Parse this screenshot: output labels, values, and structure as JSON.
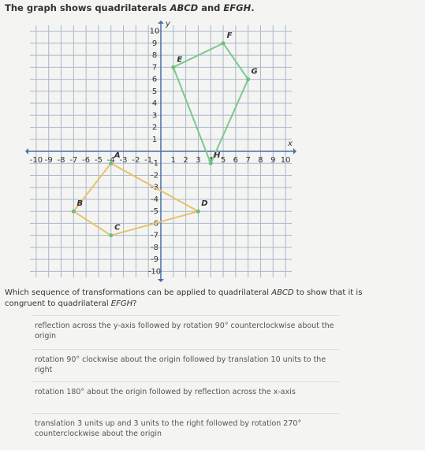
{
  "header": {
    "title": [
      "The graph shows quadrilaterals ",
      "ABCD",
      " and ",
      "EFGH",
      "."
    ]
  },
  "graph": {
    "x_label": "x",
    "y_label": "y",
    "xlim": [
      -10.5,
      10.5
    ],
    "ylim": [
      -10.5,
      10.5
    ],
    "xticks": [
      -10,
      -9,
      -8,
      -7,
      -6,
      -5,
      -4,
      -3,
      -2,
      -1,
      1,
      2,
      3,
      4,
      5,
      6,
      7,
      8,
      9,
      10
    ],
    "yticks": [
      -10,
      -9,
      -8,
      -7,
      -6,
      -5,
      -4,
      -3,
      -2,
      -1,
      1,
      2,
      3,
      4,
      5,
      6,
      7,
      8,
      9,
      10
    ],
    "shapes": [
      {
        "color": "#e6c36a",
        "vertices": [
          {
            "label": "A",
            "x": -4,
            "y": -1
          },
          {
            "label": "B",
            "x": -7,
            "y": -5
          },
          {
            "label": "C",
            "x": -4,
            "y": -7
          },
          {
            "label": "D",
            "x": 3,
            "y": -5
          }
        ]
      },
      {
        "color": "#7cc98c",
        "vertices": [
          {
            "label": "E",
            "x": 1,
            "y": 7
          },
          {
            "label": "F",
            "x": 5,
            "y": 9
          },
          {
            "label": "G",
            "x": 7,
            "y": 6
          },
          {
            "label": "H",
            "x": 4,
            "y": -1
          }
        ]
      }
    ]
  },
  "question": [
    "Which sequence of transformations can be applied to quadrilateral ",
    "ABCD",
    " to show that it is congruent to quadrilateral ",
    "EFGH",
    "?"
  ],
  "options": [
    "reflection across the y-axis followed by rotation 90° counterclockwise about the origin",
    "rotation 90° clockwise about the origin followed by translation 10 units to the right",
    "rotation 180° about the origin followed by reflection across the x-axis",
    "translation 3 units up and 3 units to the right followed by rotation 270° counterclockwise about the origin"
  ]
}
